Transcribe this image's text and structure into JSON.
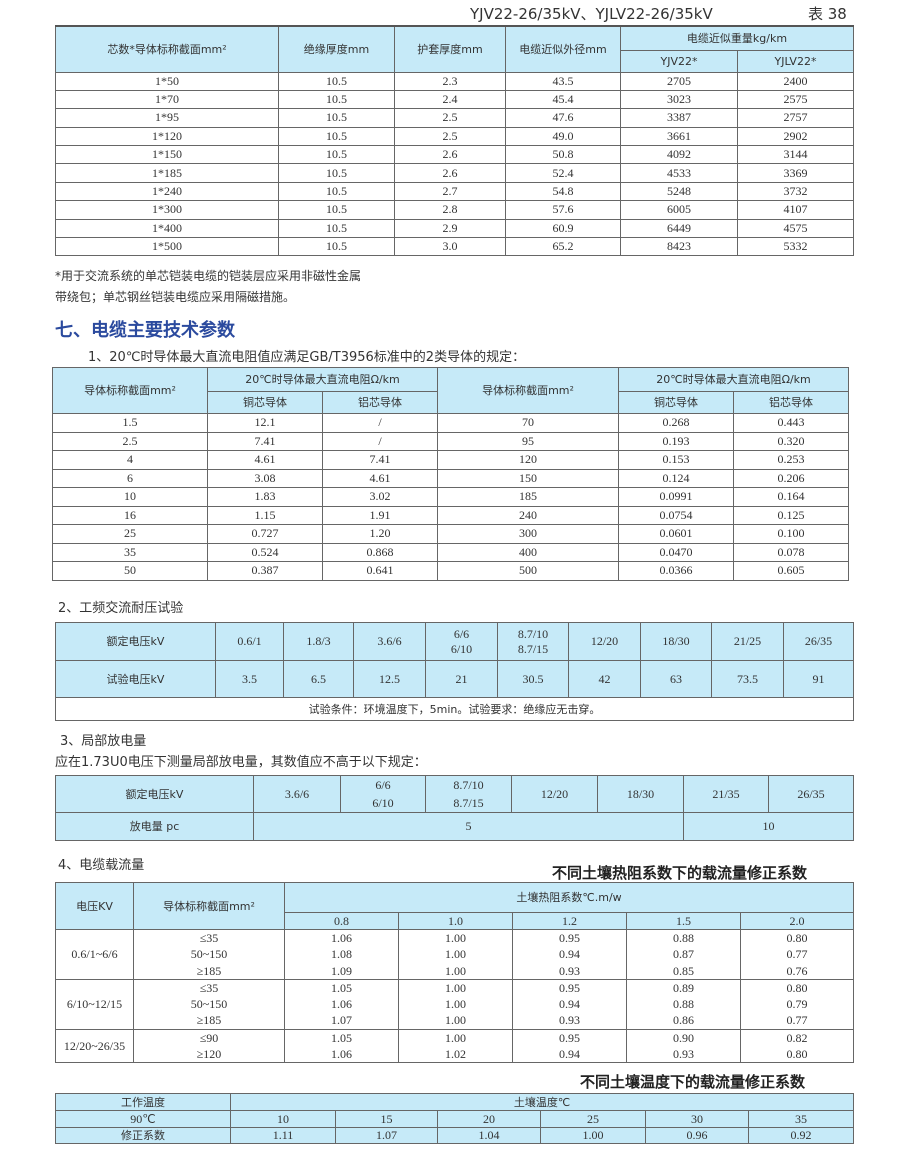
{
  "header": {
    "title": "YJV22-26/35kV、YJLV22-26/35kV",
    "table_no": "表 38"
  },
  "table1": {
    "headers": [
      "芯数*导体标称截面mm²",
      "绝缘厚度mm",
      "护套厚度mm",
      "电缆近似外径mm",
      "电缆近似重量kg/km",
      "YJV22*",
      "YJLV22*"
    ],
    "rows": [
      [
        "1*50",
        "10.5",
        "2.3",
        "43.5",
        "2705",
        "2400"
      ],
      [
        "1*70",
        "10.5",
        "2.4",
        "45.4",
        "3023",
        "2575"
      ],
      [
        "1*95",
        "10.5",
        "2.5",
        "47.6",
        "3387",
        "2757"
      ],
      [
        "1*120",
        "10.5",
        "2.5",
        "49.0",
        "3661",
        "2902"
      ],
      [
        "1*150",
        "10.5",
        "2.6",
        "50.8",
        "4092",
        "3144"
      ],
      [
        "1*185",
        "10.5",
        "2.6",
        "52.4",
        "4533",
        "3369"
      ],
      [
        "1*240",
        "10.5",
        "2.7",
        "54.8",
        "5248",
        "3732"
      ],
      [
        "1*300",
        "10.5",
        "2.8",
        "57.6",
        "6005",
        "4107"
      ],
      [
        "1*400",
        "10.5",
        "2.9",
        "60.9",
        "6449",
        "4575"
      ],
      [
        "1*500",
        "10.5",
        "3.0",
        "65.2",
        "8423",
        "5332"
      ]
    ]
  },
  "notes": [
    "*用于交流系统的单芯铠装电缆的铠装层应采用非磁性金属",
    "带绕包；单芯钢丝铠装电缆应采用隔磁措施。"
  ],
  "section_title": "七、电缆主要技术参数",
  "s1": {
    "title": "1、20℃时导体最大直流电阻值应满足GB/T3956标准中的2类导体的规定：",
    "headers": [
      "导体标称截面mm²",
      "20℃时导体最大直流电阻Ω/km",
      "铜芯导体",
      "铝芯导体",
      "导体标称截面mm²",
      "20℃时导体最大直流电阻Ω/km",
      "铜芯导体",
      "铝芯导体"
    ],
    "rows": [
      [
        "1.5",
        "12.1",
        "/",
        "70",
        "0.268",
        "0.443"
      ],
      [
        "2.5",
        "7.41",
        "/",
        "95",
        "0.193",
        "0.320"
      ],
      [
        "4",
        "4.61",
        "7.41",
        "120",
        "0.153",
        "0.253"
      ],
      [
        "6",
        "3.08",
        "4.61",
        "150",
        "0.124",
        "0.206"
      ],
      [
        "10",
        "1.83",
        "3.02",
        "185",
        "0.0991",
        "0.164"
      ],
      [
        "16",
        "1.15",
        "1.91",
        "240",
        "0.0754",
        "0.125"
      ],
      [
        "25",
        "0.727",
        "1.20",
        "300",
        "0.0601",
        "0.100"
      ],
      [
        "35",
        "0.524",
        "0.868",
        "400",
        "0.0470",
        "0.078"
      ],
      [
        "50",
        "0.387",
        "0.641",
        "500",
        "0.0366",
        "0.605"
      ]
    ]
  },
  "s2": {
    "title": "2、工频交流耐压试验",
    "labels": [
      "额定电压kV",
      "试验电压kV"
    ],
    "rated": [
      "0.6/1",
      "1.8/3",
      "3.6/6",
      "6/6\n6/10",
      "8.7/10\n8.7/15",
      "12/20",
      "18/30",
      "21/25",
      "26/35"
    ],
    "test": [
      "3.5",
      "6.5",
      "12.5",
      "21",
      "30.5",
      "42",
      "63",
      "73.5",
      "91"
    ],
    "note": "试验条件：环境温度下，5min。试验要求：绝缘应无击穿。"
  },
  "s3": {
    "title": "3、局部放电量",
    "desc": "应在1.73U0电压下测量局部放电量，其数值应不高于以下规定：",
    "labels": [
      "额定电压kV",
      "放电量 pc"
    ],
    "rated": [
      "3.6/6",
      "6/6\n6/10",
      "8.7/10\n8.7/15",
      "12/20",
      "18/30",
      "21/35",
      "26/35"
    ],
    "discharge": [
      "5",
      "10"
    ]
  },
  "s4": {
    "title": "4、电缆载流量",
    "table_title": "不同土壤热阻系数下的载流量修正系数",
    "headers": [
      "电压KV",
      "导体标称截面mm²",
      "土壤热阻系数℃.m/w"
    ],
    "coefs": [
      "0.8",
      "1.0",
      "1.2",
      "1.5",
      "2.0"
    ],
    "groups": [
      {
        "voltage": "0.6/1~6/6",
        "sections": "≤35\n50~150\n≥185",
        "cols": [
          "1.06\n1.08\n1.09",
          "1.00\n1.00\n1.00",
          "0.95\n0.94\n0.93",
          "0.88\n0.87\n0.85",
          "0.80\n0.77\n0.76"
        ]
      },
      {
        "voltage": "6/10~12/15",
        "sections": "≤35\n50~150\n≥185",
        "cols": [
          "1.05\n1.06\n1.07",
          "1.00\n1.00\n1.00",
          "0.95\n0.94\n0.93",
          "0.89\n0.88\n0.86",
          "0.80\n0.79\n0.77"
        ]
      },
      {
        "voltage": "12/20~26/35",
        "sections": "≤90\n≥120",
        "cols": [
          "1.05\n1.06",
          "1.00\n1.02",
          "0.95\n0.94",
          "0.90\n0.93",
          "0.82\n0.80"
        ]
      }
    ]
  },
  "s5": {
    "table_title": "不同土壤温度下的载流量修正系数",
    "headers": [
      "工作温度",
      "土壤温度℃"
    ],
    "work_temp": "90℃",
    "temps": [
      "10",
      "15",
      "20",
      "25",
      "30",
      "35"
    ],
    "label": "修正系数",
    "factors": [
      "1.11",
      "1.07",
      "1.04",
      "1.00",
      "0.96",
      "0.92"
    ]
  },
  "colors": {
    "header_fill": "#c6eaf8",
    "section_title": "#2b4a9e",
    "border": "#666666"
  }
}
